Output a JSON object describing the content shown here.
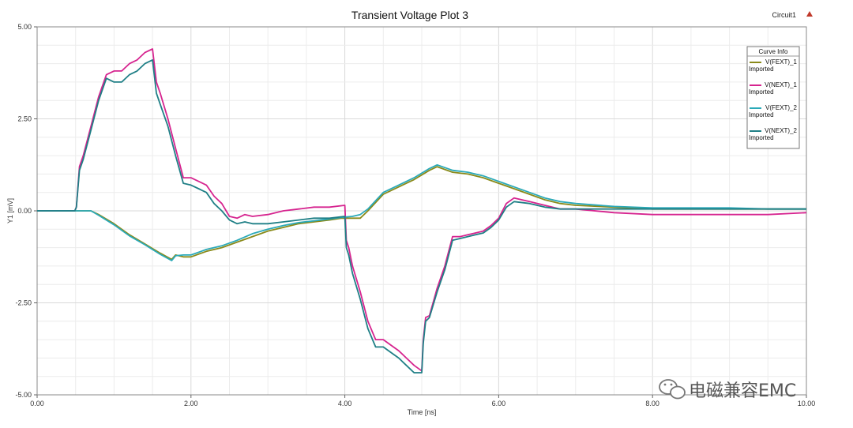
{
  "chart_data": {
    "type": "line",
    "title": "Transient Voltage Plot 3",
    "circuit_label": "Circuit1",
    "xlabel": "Time [ns]",
    "ylabel": "Y1 [mV]",
    "xlim": [
      0,
      10
    ],
    "ylim": [
      -5,
      5
    ],
    "x_ticks": [
      "0.00",
      "2.00",
      "4.00",
      "6.00",
      "8.00",
      "10.00"
    ],
    "y_ticks": [
      "5.00",
      "2.50",
      "0.00",
      "-2.50",
      "-5.00"
    ],
    "grid": true,
    "legend": {
      "title": "Curve Info",
      "placement": "top-right",
      "entries": [
        {
          "name": "V(FEXT)_1",
          "sub": "Imported",
          "color": "#8a8a1a"
        },
        {
          "name": "V(NEXT)_1",
          "sub": "Imported",
          "color": "#d6248f"
        },
        {
          "name": "V(FEXT)_2",
          "sub": "Imported",
          "color": "#2aa9b8"
        },
        {
          "name": "V(NEXT)_2",
          "sub": "Imported",
          "color": "#1f7f86"
        }
      ]
    },
    "series": [
      {
        "name": "V(FEXT)_1",
        "color": "#8a8a1a",
        "x": [
          0,
          0.5,
          0.6,
          0.7,
          0.8,
          1.0,
          1.2,
          1.4,
          1.6,
          1.75,
          1.8,
          1.9,
          2.0,
          2.2,
          2.4,
          2.6,
          2.8,
          3.0,
          3.2,
          3.4,
          3.6,
          3.8,
          3.95,
          4.1,
          4.2,
          4.3,
          4.5,
          4.7,
          4.9,
          5.1,
          5.2,
          5.4,
          5.6,
          5.8,
          6.0,
          6.2,
          6.4,
          6.6,
          6.8,
          7.0,
          7.5,
          8.0,
          8.5,
          9.0,
          9.5,
          10.0
        ],
        "y": [
          0,
          0,
          0,
          0,
          -0.1,
          -0.35,
          -0.65,
          -0.9,
          -1.15,
          -1.32,
          -1.2,
          -1.25,
          -1.25,
          -1.1,
          -1.0,
          -0.85,
          -0.7,
          -0.55,
          -0.45,
          -0.35,
          -0.3,
          -0.25,
          -0.2,
          -0.2,
          -0.2,
          0.0,
          0.45,
          0.65,
          0.85,
          1.1,
          1.2,
          1.05,
          1.0,
          0.9,
          0.75,
          0.6,
          0.45,
          0.3,
          0.2,
          0.15,
          0.1,
          0.05,
          0.05,
          0.05,
          0.05,
          0.05
        ]
      },
      {
        "name": "V(NEXT)_1",
        "color": "#d6248f",
        "x": [
          0,
          0.49,
          0.51,
          0.55,
          0.6,
          0.7,
          0.8,
          0.9,
          1.0,
          1.1,
          1.2,
          1.3,
          1.4,
          1.5,
          1.55,
          1.6,
          1.7,
          1.8,
          1.9,
          2.0,
          2.1,
          2.2,
          2.3,
          2.4,
          2.5,
          2.6,
          2.7,
          2.8,
          3.0,
          3.2,
          3.4,
          3.6,
          3.8,
          4.0,
          4.02,
          4.05,
          4.1,
          4.2,
          4.3,
          4.4,
          4.5,
          4.6,
          4.7,
          4.8,
          4.9,
          5.0,
          5.02,
          5.05,
          5.1,
          5.2,
          5.3,
          5.4,
          5.5,
          5.6,
          5.7,
          5.8,
          5.9,
          6.0,
          6.1,
          6.2,
          6.4,
          6.6,
          6.8,
          7.0,
          7.5,
          8.0,
          8.5,
          9.0,
          9.5,
          10.0
        ],
        "y": [
          0,
          0,
          0.1,
          1.2,
          1.5,
          2.3,
          3.1,
          3.7,
          3.8,
          3.8,
          4.0,
          4.1,
          4.3,
          4.4,
          3.5,
          3.2,
          2.5,
          1.7,
          0.9,
          0.9,
          0.8,
          0.7,
          0.4,
          0.2,
          -0.15,
          -0.2,
          -0.1,
          -0.15,
          -0.1,
          0.0,
          0.05,
          0.1,
          0.1,
          0.15,
          -0.8,
          -1.0,
          -1.5,
          -2.2,
          -3.0,
          -3.5,
          -3.5,
          -3.65,
          -3.8,
          -4.0,
          -4.2,
          -4.35,
          -3.5,
          -2.9,
          -2.85,
          -2.1,
          -1.5,
          -0.7,
          -0.7,
          -0.65,
          -0.6,
          -0.55,
          -0.4,
          -0.2,
          0.2,
          0.35,
          0.25,
          0.15,
          0.05,
          0.05,
          -0.05,
          -0.1,
          -0.1,
          -0.1,
          -0.1,
          -0.05
        ]
      },
      {
        "name": "V(FEXT)_2",
        "color": "#2aa9b8",
        "x": [
          0,
          0.5,
          0.6,
          0.7,
          0.8,
          1.0,
          1.2,
          1.4,
          1.6,
          1.75,
          1.8,
          1.9,
          2.0,
          2.2,
          2.4,
          2.6,
          2.8,
          3.0,
          3.2,
          3.4,
          3.6,
          3.8,
          3.95,
          4.1,
          4.2,
          4.3,
          4.5,
          4.7,
          4.9,
          5.1,
          5.2,
          5.4,
          5.6,
          5.8,
          6.0,
          6.2,
          6.4,
          6.6,
          6.8,
          7.0,
          7.5,
          8.0,
          8.5,
          9.0,
          9.5,
          10.0
        ],
        "y": [
          0,
          0,
          0,
          0,
          -0.12,
          -0.38,
          -0.68,
          -0.92,
          -1.18,
          -1.35,
          -1.22,
          -1.2,
          -1.2,
          -1.05,
          -0.95,
          -0.8,
          -0.62,
          -0.5,
          -0.4,
          -0.32,
          -0.27,
          -0.22,
          -0.18,
          -0.15,
          -0.1,
          0.05,
          0.5,
          0.7,
          0.9,
          1.15,
          1.25,
          1.1,
          1.05,
          0.95,
          0.8,
          0.65,
          0.5,
          0.35,
          0.25,
          0.2,
          0.12,
          0.08,
          0.08,
          0.08,
          0.05,
          0.05
        ]
      },
      {
        "name": "V(NEXT)_2",
        "color": "#1f7f86",
        "x": [
          0,
          0.49,
          0.51,
          0.55,
          0.6,
          0.7,
          0.8,
          0.9,
          1.0,
          1.1,
          1.2,
          1.3,
          1.4,
          1.5,
          1.55,
          1.6,
          1.7,
          1.8,
          1.9,
          2.0,
          2.1,
          2.2,
          2.3,
          2.4,
          2.5,
          2.6,
          2.7,
          2.8,
          3.0,
          3.2,
          3.4,
          3.6,
          3.8,
          4.0,
          4.02,
          4.05,
          4.1,
          4.2,
          4.3,
          4.4,
          4.5,
          4.6,
          4.7,
          4.8,
          4.9,
          5.0,
          5.02,
          5.05,
          5.1,
          5.2,
          5.3,
          5.4,
          5.5,
          5.6,
          5.7,
          5.8,
          5.9,
          6.0,
          6.1,
          6.2,
          6.4,
          6.6,
          6.8,
          7.0,
          7.5,
          8.0,
          8.5,
          9.0,
          9.5,
          10.0
        ],
        "y": [
          0,
          0,
          0.1,
          1.1,
          1.4,
          2.2,
          3.0,
          3.6,
          3.5,
          3.5,
          3.7,
          3.8,
          4.0,
          4.1,
          3.2,
          2.9,
          2.3,
          1.5,
          0.75,
          0.7,
          0.6,
          0.5,
          0.2,
          0.0,
          -0.25,
          -0.35,
          -0.3,
          -0.35,
          -0.35,
          -0.3,
          -0.25,
          -0.2,
          -0.2,
          -0.15,
          -1.0,
          -1.2,
          -1.7,
          -2.4,
          -3.2,
          -3.7,
          -3.7,
          -3.85,
          -4.0,
          -4.2,
          -4.4,
          -4.4,
          -3.6,
          -3.0,
          -2.9,
          -2.2,
          -1.6,
          -0.8,
          -0.75,
          -0.7,
          -0.65,
          -0.6,
          -0.45,
          -0.25,
          0.1,
          0.25,
          0.2,
          0.1,
          0.05,
          0.05,
          0.05,
          0.05,
          0.05,
          0.05,
          0.05,
          0.05
        ]
      }
    ]
  },
  "watermark": "电磁兼容EMC",
  "watermark_icon": "wechat-icon"
}
